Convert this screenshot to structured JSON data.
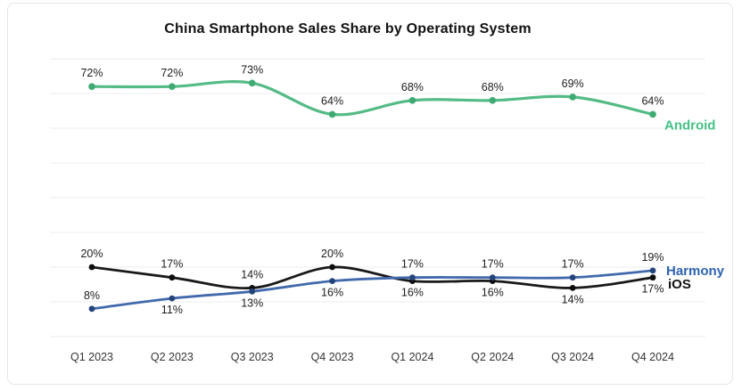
{
  "title": "China Smartphone Sales Share by Operating System",
  "chart_data": {
    "type": "line",
    "title": "China Smartphone Sales Share by Operating System",
    "categories": [
      "Q1 2023",
      "Q2 2023",
      "Q3 2023",
      "Q4 2023",
      "Q1 2024",
      "Q2 2024",
      "Q3 2024",
      "Q4 2024"
    ],
    "series": [
      {
        "name": "Android",
        "color": "#55bb86",
        "point_color": "#3fab73",
        "label_color": "#45c185",
        "values": [
          72,
          72,
          73,
          64,
          68,
          68,
          69,
          64
        ],
        "label_side": [
          "above",
          "above",
          "above",
          "above",
          "above",
          "above",
          "above",
          "above"
        ]
      },
      {
        "name": "iOS",
        "color": "#191919",
        "point_color": "#0d0d0d",
        "label_color": "#111111",
        "values": [
          20,
          17,
          14,
          20,
          16,
          16,
          14,
          17
        ],
        "label_side": [
          "above",
          "above",
          "above",
          "above",
          "below",
          "below",
          "below",
          "below"
        ]
      },
      {
        "name": "Harmony",
        "color": "#4169ac",
        "point_color": "#24447c",
        "label_color": "#2e62ae",
        "values": [
          8,
          11,
          13,
          16,
          17,
          17,
          17,
          19
        ],
        "label_side": [
          "above",
          "below",
          "below",
          "below",
          "above",
          "above",
          "above",
          "above"
        ]
      }
    ],
    "value_suffix": "%",
    "xlabel": "",
    "ylabel": "",
    "ylim": [
      0,
      80
    ],
    "grid": true,
    "grid_step": 10,
    "legend_position": "right-of-last-point"
  }
}
